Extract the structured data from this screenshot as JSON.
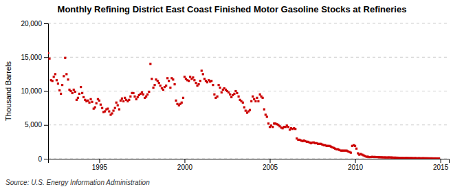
{
  "chart_data": {
    "type": "scatter",
    "title": "Monthly Refining District East Coast Finished Motor Gasoline Stocks at Refineries",
    "ylabel": "Thousand Barrels",
    "annotations": [
      "Source: U.S. Energy Information Administration"
    ],
    "color": "#CC0000",
    "marker": "square",
    "grid": true,
    "xlim": [
      1992.0,
      2015.5
    ],
    "ylim": [
      0,
      20000
    ],
    "xticks": [
      1995,
      2000,
      2005,
      2010,
      2015
    ],
    "yticks": [
      0,
      {
        "value": 5000,
        "label": "5,000"
      },
      {
        "value": 10000,
        "label": "10,000"
      },
      {
        "value": 15000,
        "label": "15,000"
      },
      {
        "value": 20000,
        "label": "20,000"
      }
    ],
    "x": [
      1992.0,
      1992.08,
      1992.17,
      1992.25,
      1992.33,
      1992.42,
      1992.5,
      1992.58,
      1992.67,
      1992.75,
      1992.83,
      1992.92,
      1993.0,
      1993.08,
      1993.17,
      1993.25,
      1993.33,
      1993.42,
      1993.5,
      1993.58,
      1993.67,
      1993.75,
      1993.83,
      1993.92,
      1994.0,
      1994.08,
      1994.17,
      1994.25,
      1994.33,
      1994.42,
      1994.5,
      1994.58,
      1994.67,
      1994.75,
      1994.83,
      1994.92,
      1995.0,
      1995.08,
      1995.17,
      1995.25,
      1995.33,
      1995.42,
      1995.5,
      1995.58,
      1995.67,
      1995.75,
      1995.83,
      1995.92,
      1996.0,
      1996.08,
      1996.17,
      1996.25,
      1996.33,
      1996.42,
      1996.5,
      1996.58,
      1996.67,
      1996.75,
      1996.83,
      1996.92,
      1997.0,
      1997.08,
      1997.17,
      1997.25,
      1997.33,
      1997.42,
      1997.5,
      1997.58,
      1997.67,
      1997.75,
      1997.83,
      1997.92,
      1998.0,
      1998.08,
      1998.17,
      1998.25,
      1998.33,
      1998.42,
      1998.5,
      1998.58,
      1998.67,
      1998.75,
      1998.83,
      1998.92,
      1999.0,
      1999.08,
      1999.17,
      1999.25,
      1999.33,
      1999.42,
      1999.5,
      1999.58,
      1999.67,
      1999.75,
      1999.83,
      1999.92,
      2000.0,
      2000.08,
      2000.17,
      2000.25,
      2000.33,
      2000.42,
      2000.5,
      2000.58,
      2000.67,
      2000.75,
      2000.83,
      2000.92,
      2001.0,
      2001.08,
      2001.17,
      2001.25,
      2001.33,
      2001.42,
      2001.5,
      2001.58,
      2001.67,
      2001.75,
      2001.83,
      2001.92,
      2002.0,
      2002.08,
      2002.17,
      2002.25,
      2002.33,
      2002.42,
      2002.5,
      2002.58,
      2002.67,
      2002.75,
      2002.83,
      2002.92,
      2003.0,
      2003.08,
      2003.17,
      2003.25,
      2003.33,
      2003.42,
      2003.5,
      2003.58,
      2003.67,
      2003.75,
      2003.83,
      2003.92,
      2004.0,
      2004.08,
      2004.17,
      2004.25,
      2004.33,
      2004.42,
      2004.5,
      2004.58,
      2004.67,
      2004.75,
      2004.83,
      2004.92,
      2005.0,
      2005.08,
      2005.17,
      2005.25,
      2005.33,
      2005.42,
      2005.5,
      2005.58,
      2005.67,
      2005.75,
      2005.83,
      2005.92,
      2006.0,
      2006.08,
      2006.17,
      2006.25,
      2006.33,
      2006.42,
      2006.5,
      2006.58,
      2006.67,
      2006.75,
      2006.83,
      2006.92,
      2007.0,
      2007.08,
      2007.17,
      2007.25,
      2007.33,
      2007.42,
      2007.5,
      2007.58,
      2007.67,
      2007.75,
      2007.83,
      2007.92,
      2008.0,
      2008.08,
      2008.17,
      2008.25,
      2008.33,
      2008.42,
      2008.5,
      2008.58,
      2008.67,
      2008.75,
      2008.83,
      2008.92,
      2009.0,
      2009.08,
      2009.17,
      2009.25,
      2009.33,
      2009.42,
      2009.5,
      2009.58,
      2009.67,
      2009.75,
      2009.83,
      2009.92,
      2010.0,
      2010.08,
      2010.17,
      2010.25,
      2010.33,
      2010.42,
      2010.5,
      2010.58,
      2010.67,
      2010.75,
      2010.83,
      2010.92,
      2011.0,
      2011.08,
      2011.17,
      2011.25,
      2011.33,
      2011.42,
      2011.5,
      2011.58,
      2011.67,
      2011.75,
      2011.83,
      2011.92,
      2012.0,
      2012.08,
      2012.17,
      2012.25,
      2012.33,
      2012.42,
      2012.5,
      2012.58,
      2012.67,
      2012.75,
      2012.83,
      2012.92,
      2013.0,
      2013.08,
      2013.17,
      2013.25,
      2013.33,
      2013.42,
      2013.5,
      2013.58,
      2013.67,
      2013.75,
      2013.83,
      2013.92,
      2014.0,
      2014.08,
      2014.17,
      2014.25,
      2014.33,
      2014.42,
      2014.5,
      2014.58,
      2014.67,
      2014.75,
      2014.83,
      2014.92
    ],
    "values": [
      15600,
      14800,
      11600,
      11500,
      12100,
      12500,
      11600,
      11100,
      10100,
      9600,
      10900,
      12200,
      14900,
      12500,
      11700,
      10200,
      10000,
      9700,
      10200,
      9900,
      8700,
      9000,
      9600,
      10600,
      9700,
      9100,
      8700,
      8500,
      8600,
      8300,
      8800,
      8400,
      7400,
      7600,
      8200,
      8800,
      8600,
      8000,
      7500,
      6900,
      7000,
      7300,
      7400,
      7000,
      6500,
      6700,
      7100,
      7500,
      8300,
      7900,
      7300,
      8600,
      8900,
      8500,
      9000,
      8700,
      8500,
      8700,
      9200,
      9700,
      9700,
      9200,
      8800,
      9100,
      9400,
      9600,
      9800,
      9500,
      9000,
      9200,
      9500,
      9900,
      14000,
      11800,
      10500,
      10900,
      11700,
      11500,
      11200,
      10800,
      10400,
      10200,
      10600,
      10800,
      11900,
      11500,
      10500,
      11900,
      11700,
      11000,
      8600,
      8100,
      7900,
      8100,
      8300,
      9000,
      12100,
      11800,
      11600,
      11500,
      12100,
      11800,
      12000,
      11600,
      11200,
      10800,
      11000,
      11500,
      13000,
      12500,
      11800,
      11500,
      11300,
      11600,
      11400,
      11500,
      10900,
      9500,
      9000,
      9200,
      10900,
      10500,
      9800,
      10200,
      10400,
      10200,
      10000,
      9800,
      9500,
      9100,
      9400,
      9600,
      10000,
      9700,
      9200,
      8700,
      8500,
      8300,
      7600,
      7100,
      6800,
      7000,
      7200,
      8500,
      9200,
      8800,
      8500,
      9000,
      8500,
      9500,
      9200,
      9000,
      7300,
      6500,
      6200,
      5200,
      4700,
      4900,
      4700,
      5200,
      5200,
      5100,
      5000,
      4800,
      4600,
      4500,
      4700,
      4700,
      4900,
      4700,
      4300,
      4500,
      4400,
      4500,
      4400,
      3000,
      2800,
      2800,
      2700,
      2600,
      2700,
      2600,
      2500,
      2500,
      2400,
      2300,
      2400,
      2400,
      2300,
      2300,
      2200,
      2200,
      2200,
      2100,
      2000,
      2000,
      1900,
      1900,
      1900,
      1800,
      1700,
      1600,
      1500,
      1400,
      1400,
      1300,
      1200,
      1200,
      1200,
      1200,
      1200,
      1100,
      1000,
      900,
      1900,
      2000,
      1900,
      1500,
      800,
      600,
      700,
      600,
      500,
      400,
      300,
      300,
      250,
      250,
      280,
      270,
      260,
      250,
      240,
      230,
      220,
      210,
      200,
      200,
      190,
      190,
      200,
      190,
      180,
      170,
      160,
      160,
      150,
      140,
      130,
      130,
      120,
      120,
      130,
      120,
      110,
      110,
      100,
      100,
      90,
      90,
      85,
      80,
      80,
      75,
      80,
      75,
      70,
      65,
      60,
      60,
      55,
      50,
      50,
      45,
      45,
      40
    ]
  }
}
